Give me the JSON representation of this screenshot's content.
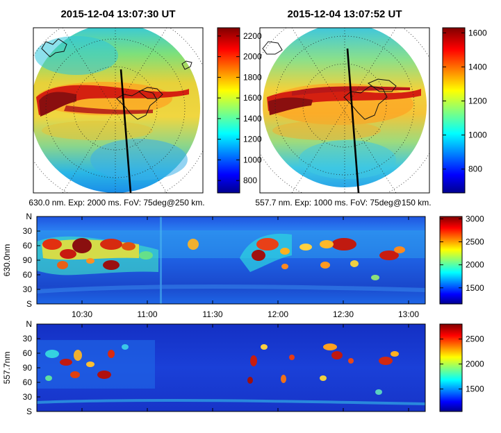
{
  "panels": {
    "left_title": "2015-12-04 13:07:30 UT",
    "right_title": "2015-12-04 13:07:52 UT",
    "left_caption": "630.0 nm. Exp: 2000 ms. FoV: 75deg@250 km.",
    "right_caption": "557.7 nm. Exp: 1000 ms. FoV: 75deg@150 km."
  },
  "chart_data": [
    {
      "type": "heatmap",
      "title": "2015-12-04 13:07:30 UT",
      "subtitle": "630.0 nm. Exp: 2000 ms. FoV: 75deg@250 km.",
      "colorbar": {
        "ticks": [
          "800",
          "1000",
          "1200",
          "1400",
          "1600",
          "1800",
          "2000",
          "2200"
        ],
        "range": [
          680,
          2280
        ]
      },
      "grid": true
    },
    {
      "type": "heatmap",
      "title": "2015-12-04 13:07:52 UT",
      "subtitle": "557.7 nm. Exp: 1000 ms. FoV: 75deg@150 km.",
      "colorbar": {
        "ticks": [
          "800",
          "1000",
          "1200",
          "1400",
          "1600"
        ],
        "range": [
          660,
          1630
        ]
      },
      "grid": true
    },
    {
      "type": "heatmap",
      "ylabel": "630.0nm",
      "yticks": [
        "N",
        "30",
        "60",
        "90",
        "60",
        "30",
        "S"
      ],
      "xticks": [
        "10:30",
        "11:00",
        "11:30",
        "12:00",
        "12:30",
        "13:00"
      ],
      "colorbar": {
        "ticks": [
          "1500",
          "2000",
          "2500",
          "3000"
        ],
        "range": [
          1150,
          3050
        ]
      }
    },
    {
      "type": "heatmap",
      "ylabel": "557.7nm",
      "yticks": [
        "N",
        "30",
        "60",
        "90",
        "60",
        "30",
        "S"
      ],
      "colorbar": {
        "ticks": [
          "1500",
          "2000",
          "2500"
        ],
        "range": [
          1050,
          2800
        ]
      }
    }
  ]
}
